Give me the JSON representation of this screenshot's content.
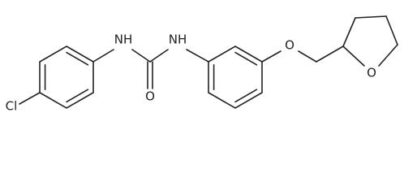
{
  "labels": [
    "Cl",
    "NH",
    "O",
    "NH",
    "O",
    "O"
  ]
}
